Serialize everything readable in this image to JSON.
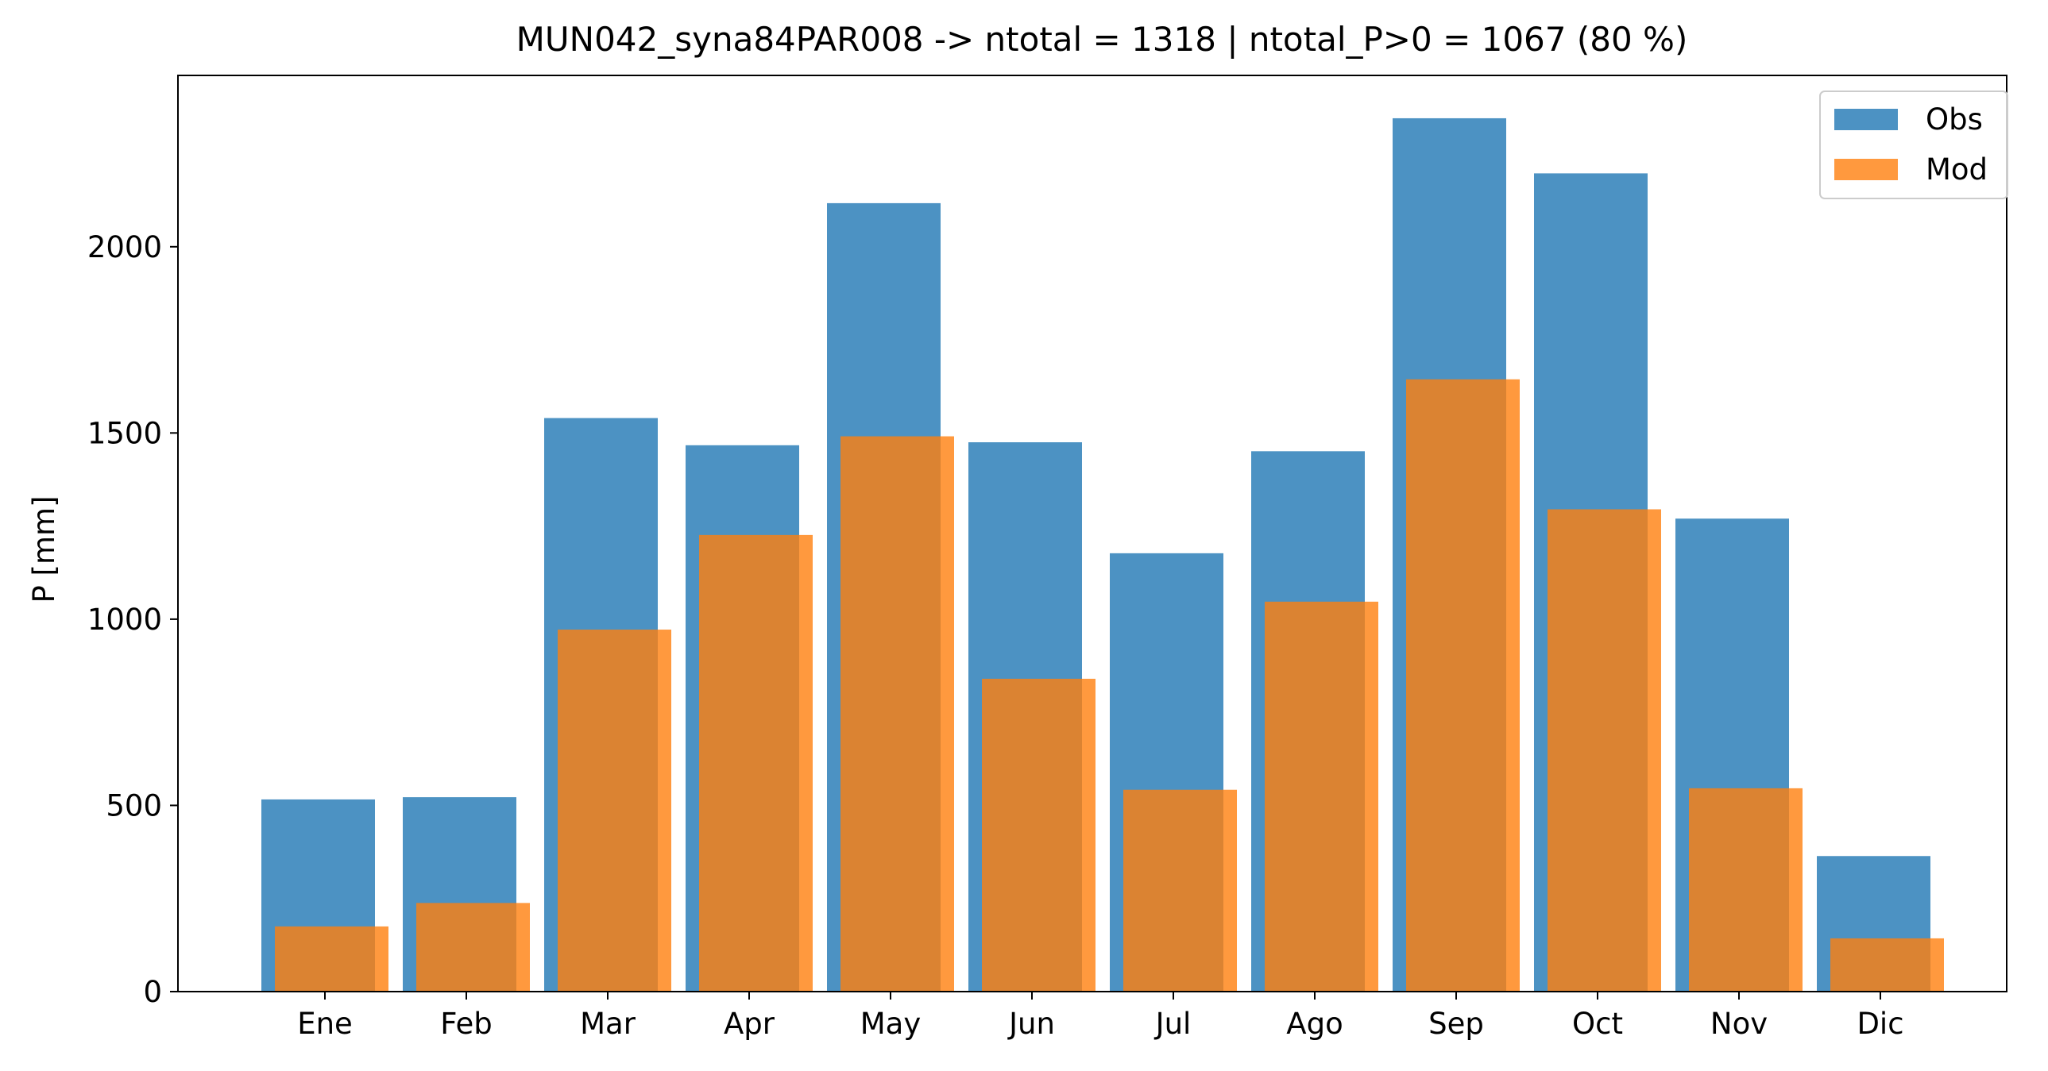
{
  "chart_data": {
    "type": "bar",
    "title": "MUN042_syna84PAR008 -> ntotal = 1318 | ntotal_P>0 = 1067 (80 %)",
    "xlabel": "",
    "ylabel": "P [mm]",
    "categories": [
      "Ene",
      "Feb",
      "Mar",
      "Apr",
      "May",
      "Jun",
      "Jul",
      "Ago",
      "Sep",
      "Oct",
      "Nov",
      "Dic"
    ],
    "series": [
      {
        "name": "Obs",
        "color": "#1f77b4",
        "values": [
          516,
          522,
          1540,
          1467,
          2117,
          1475,
          1177,
          1451,
          2345,
          2197,
          1270,
          364
        ]
      },
      {
        "name": "Mod",
        "color": "#ff7f0e",
        "values": [
          175,
          238,
          972,
          1226,
          1491,
          840,
          542,
          1047,
          1644,
          1295,
          546,
          143
        ]
      }
    ],
    "ylim": [
      0,
      2460
    ],
    "yticks": [
      0,
      500,
      1000,
      1500,
      2000
    ],
    "legend_position": "top-right",
    "grid": false
  }
}
